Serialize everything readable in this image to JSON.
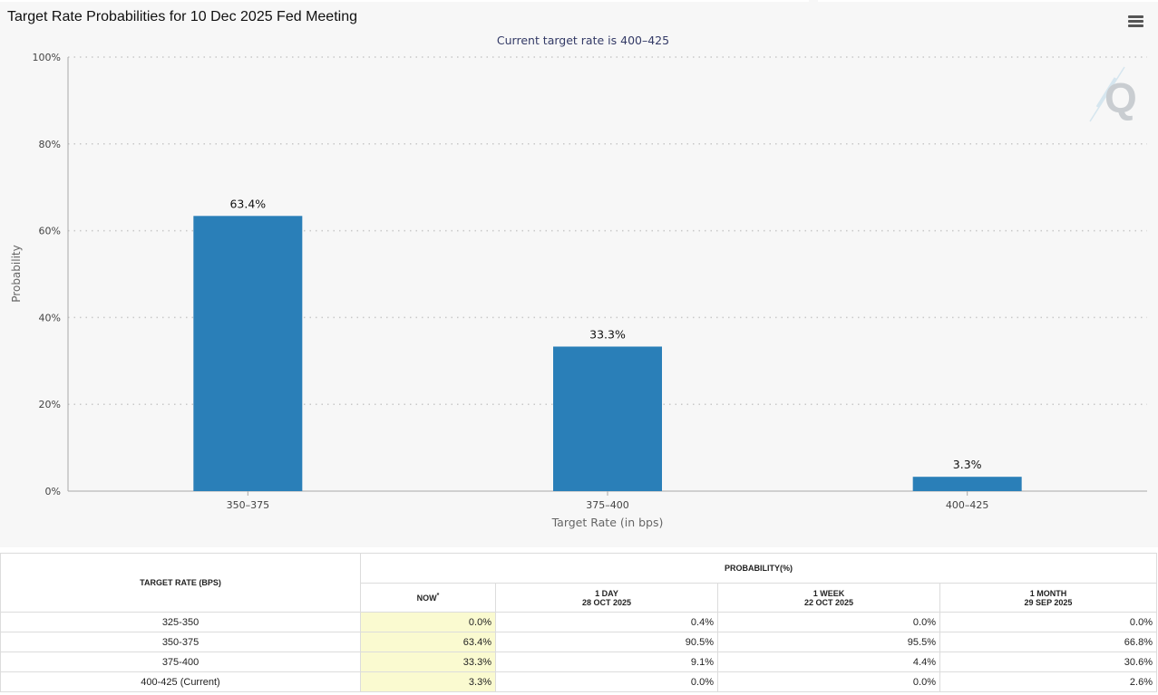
{
  "chart_title": "Target Rate Probabilities for 10 Dec 2025 Fed Meeting",
  "menu_icon": "hamburger-menu-icon",
  "watermark_icon": "q-logo-icon",
  "colors": {
    "bar": "#2a7fb8",
    "panel": "#f7f7f7",
    "now_column": "#fafad0"
  },
  "chart_data": {
    "type": "bar",
    "title": "Target Rate Probabilities for 10 Dec 2025 Fed Meeting",
    "subtitle": "Current target rate is 400–425",
    "xlabel": "Target Rate (in bps)",
    "ylabel": "Probability",
    "categories": [
      "350–375",
      "375–400",
      "400–425"
    ],
    "values": [
      63.4,
      33.3,
      3.3
    ],
    "data_labels": [
      "63.4%",
      "33.3%",
      "3.3%"
    ],
    "ylim": [
      0,
      100
    ],
    "yticks": [
      0,
      20,
      40,
      60,
      80,
      100
    ],
    "ytick_labels": [
      "0%",
      "20%",
      "40%",
      "60%",
      "80%",
      "100%"
    ],
    "grid": true,
    "legend": "none"
  },
  "table": {
    "target_rate_header": "TARGET RATE (BPS)",
    "probability_header": "PROBABILITY(%)",
    "columns": [
      {
        "label": "NOW",
        "note": "*"
      },
      {
        "label": "1 DAY",
        "date": "28 OCT 2025"
      },
      {
        "label": "1 WEEK",
        "date": "22 OCT 2025"
      },
      {
        "label": "1 MONTH",
        "date": "29 SEP 2025"
      }
    ],
    "rows": [
      {
        "rate": "325-350",
        "values": [
          "0.0%",
          "0.4%",
          "0.0%",
          "0.0%"
        ]
      },
      {
        "rate": "350-375",
        "values": [
          "63.4%",
          "90.5%",
          "95.5%",
          "66.8%"
        ]
      },
      {
        "rate": "375-400",
        "values": [
          "33.3%",
          "9.1%",
          "4.4%",
          "30.6%"
        ]
      },
      {
        "rate": "400-425 (Current)",
        "values": [
          "3.3%",
          "0.0%",
          "0.0%",
          "2.6%"
        ]
      }
    ]
  }
}
